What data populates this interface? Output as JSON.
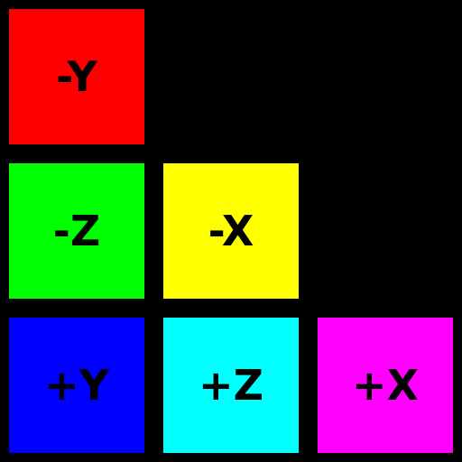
{
  "background_color": "#000000",
  "label_color": "#000000",
  "tiles": {
    "neg_y": {
      "label": "-Y",
      "color": "#ff0000"
    },
    "neg_z": {
      "label": "-Z",
      "color": "#00ff00"
    },
    "neg_x": {
      "label": "-X",
      "color": "#ffff00"
    },
    "pos_y": {
      "label": "+Y",
      "color": "#0000ff"
    },
    "pos_z": {
      "label": "+Z",
      "color": "#00ffff"
    },
    "pos_x": {
      "label": "+X",
      "color": "#ff00ff"
    }
  }
}
